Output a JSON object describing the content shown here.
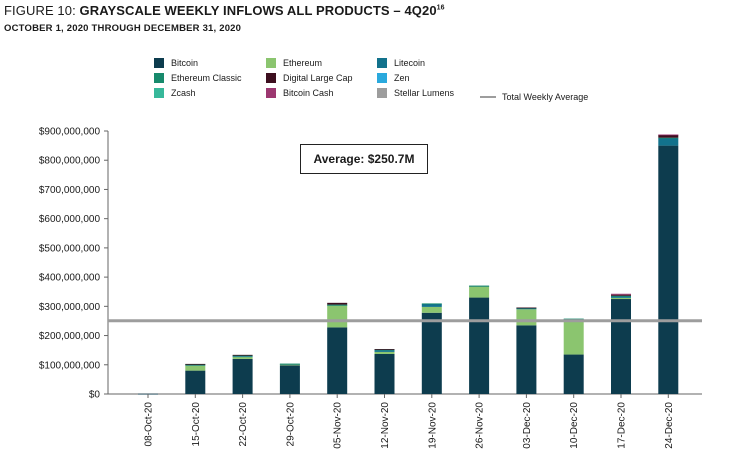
{
  "title_lead": "FIGURE 10: ",
  "title_main": "GRAYSCALE WEEKLY INFLOWS ALL PRODUCTS – 4Q20",
  "title_sup": "16",
  "subtitle": "OCTOBER 1, 2020 THROUGH DECEMBER 31, 2020",
  "average_label": "Average: $250.7M",
  "legend": [
    {
      "name": "Bitcoin",
      "color": "#0d3c4e",
      "kind": "swatch"
    },
    {
      "name": "Ethereum",
      "color": "#8bc56f",
      "kind": "swatch"
    },
    {
      "name": "Litecoin",
      "color": "#12728c",
      "kind": "swatch"
    },
    {
      "name": "Ethereum Classic",
      "color": "#178a6c",
      "kind": "swatch"
    },
    {
      "name": "Digital Large Cap",
      "color": "#3d0f1f",
      "kind": "swatch"
    },
    {
      "name": "Zen",
      "color": "#2aa9dd",
      "kind": "swatch"
    },
    {
      "name": "Zcash",
      "color": "#37b89a",
      "kind": "swatch"
    },
    {
      "name": "Bitcoin Cash",
      "color": "#9c3770",
      "kind": "swatch"
    },
    {
      "name": "Stellar Lumens",
      "color": "#9d9d9d",
      "kind": "swatch"
    },
    {
      "name": "Total Weekly Average",
      "color": "#9d9d9d",
      "kind": "line"
    }
  ],
  "chart_data": {
    "type": "bar",
    "stacked": true,
    "categories": [
      "08-Oct-20",
      "15-Oct-20",
      "22-Oct-20",
      "29-Oct-20",
      "05-Nov-20",
      "12-Nov-20",
      "19-Nov-20",
      "26-Nov-20",
      "03-Dec-20",
      "10-Dec-20",
      "17-Dec-20",
      "24-Dec-20"
    ],
    "ylim": [
      0,
      900000000
    ],
    "yticks": [
      0,
      100000000,
      200000000,
      300000000,
      400000000,
      500000000,
      600000000,
      700000000,
      800000000,
      900000000
    ],
    "ytick_labels": [
      "$0",
      "$100,000,000",
      "$200,000,000",
      "$300,000,000",
      "$400,000,000",
      "$500,000,000",
      "$600,000,000",
      "$700,000,000",
      "$800,000,000",
      "$900,000,000"
    ],
    "average": 250700000,
    "series": [
      {
        "name": "Bitcoin",
        "color": "#0d3c4e",
        "values": [
          1000000,
          80000000,
          120000000,
          98000000,
          228000000,
          137000000,
          278000000,
          330000000,
          235000000,
          135000000,
          325000000,
          850000000
        ]
      },
      {
        "name": "Ethereum",
        "color": "#8bc56f",
        "values": [
          0,
          18000000,
          8000000,
          4000000,
          75000000,
          7000000,
          20000000,
          38000000,
          55000000,
          117000000,
          4000000,
          0
        ]
      },
      {
        "name": "Litecoin",
        "color": "#12728c",
        "values": [
          0,
          2000000,
          1000000,
          1000000,
          2000000,
          6000000,
          10000000,
          2000000,
          3000000,
          4000000,
          6000000,
          25000000
        ]
      },
      {
        "name": "Ethereum Classic",
        "color": "#178a6c",
        "values": [
          0,
          2000000,
          3000000,
          1000000,
          1000000,
          2000000,
          2000000,
          1000000,
          2000000,
          2000000,
          1000000,
          2000000
        ]
      },
      {
        "name": "Digital Large Cap",
        "color": "#3d0f1f",
        "values": [
          0,
          1000000,
          2000000,
          0,
          6000000,
          2000000,
          0,
          0,
          1000000,
          0,
          4000000,
          10000000
        ]
      },
      {
        "name": "Zen",
        "color": "#2aa9dd",
        "values": [
          0,
          0,
          0,
          0,
          0,
          0,
          0,
          0,
          0,
          0,
          0,
          0
        ]
      },
      {
        "name": "Zcash",
        "color": "#37b89a",
        "values": [
          0,
          0,
          0,
          0,
          0,
          0,
          0,
          0,
          0,
          0,
          0,
          0
        ]
      },
      {
        "name": "Bitcoin Cash",
        "color": "#9c3770",
        "values": [
          0,
          0,
          0,
          0,
          0,
          0,
          0,
          0,
          0,
          0,
          3000000,
          1000000
        ]
      },
      {
        "name": "Stellar Lumens",
        "color": "#9d9d9d",
        "values": [
          0,
          0,
          0,
          0,
          0,
          0,
          0,
          0,
          0,
          0,
          0,
          0
        ]
      }
    ]
  }
}
